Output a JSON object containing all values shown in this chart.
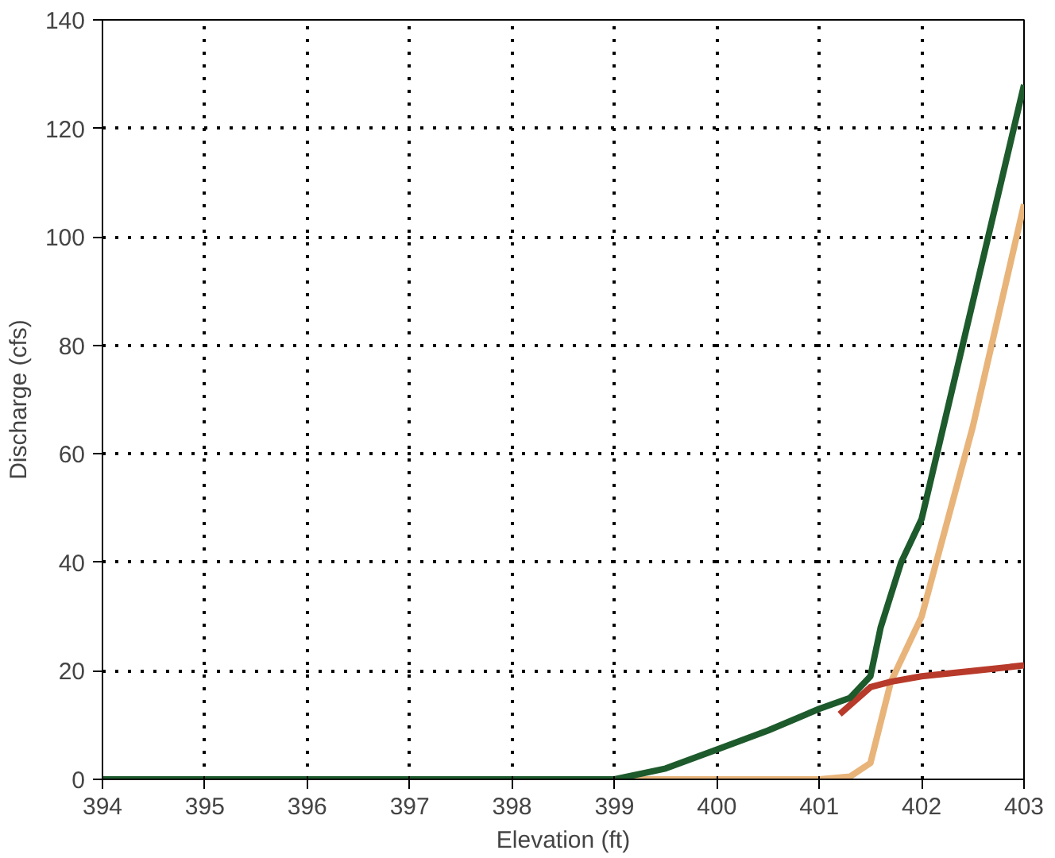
{
  "chart_data": {
    "type": "line",
    "xlabel": "Elevation (ft)",
    "ylabel": "Discharge (cfs)",
    "xlim": [
      394,
      403
    ],
    "xticks": [
      394,
      395,
      396,
      397,
      398,
      399,
      400,
      401,
      402,
      403
    ],
    "ylim": [
      0,
      140
    ],
    "yticks": [
      0,
      20,
      40,
      60,
      80,
      100,
      120,
      140
    ],
    "grid": true,
    "line_style": "solid",
    "series": [
      {
        "color": "#e8b47a",
        "x": [
          399,
          400,
          401,
          401.3,
          401.5,
          401.7,
          402,
          402.5,
          403
        ],
        "values": [
          0,
          0,
          0,
          0.5,
          3,
          18,
          30,
          65,
          106
        ]
      },
      {
        "color": "#b83a2a",
        "x": [
          401.2,
          401.5,
          401.7,
          402,
          402.5,
          403
        ],
        "values": [
          12,
          17,
          18,
          19,
          20,
          21
        ]
      },
      {
        "color": "#1d5a2c",
        "x": [
          394,
          395,
          396,
          397,
          398,
          399,
          399.5,
          400,
          400.5,
          401,
          401.3,
          401.5,
          401.6,
          401.8,
          402,
          402.5,
          403
        ],
        "values": [
          0,
          0,
          0,
          0,
          0,
          0,
          2,
          5.5,
          9,
          13,
          15,
          19,
          28,
          40,
          48,
          88,
          128
        ]
      }
    ]
  }
}
